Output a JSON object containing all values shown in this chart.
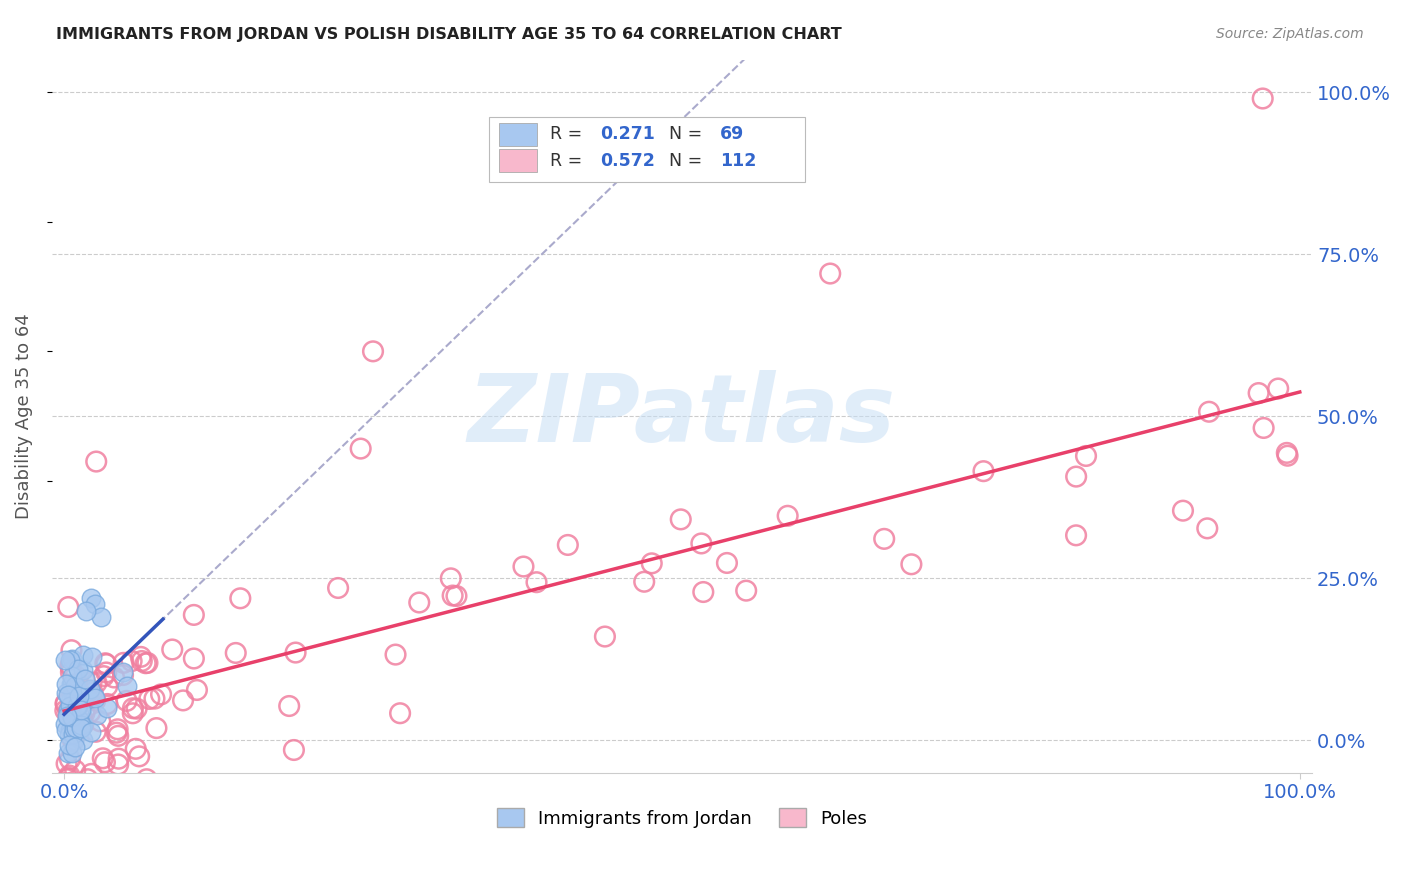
{
  "title": "IMMIGRANTS FROM JORDAN VS POLISH DISABILITY AGE 35 TO 64 CORRELATION CHART",
  "source": "Source: ZipAtlas.com",
  "ylabel": "Disability Age 35 to 64",
  "watermark_text": "ZIPatlas",
  "jordan_color": "#a8c8f0",
  "jordan_edge_color": "#7aaade",
  "jordan_line_color": "#3355bb",
  "poles_color_face": "none",
  "poles_edge_color": "#f080a0",
  "poles_line_color": "#e8406a",
  "dashed_line_color": "#aaaacc",
  "legend_r_eq_color": "#333333",
  "legend_value_color": "#3366cc",
  "legend_n_eq_color": "#333333",
  "axis_label_color": "#3366cc",
  "title_color": "#222222",
  "source_color": "#888888",
  "grid_color": "#cccccc",
  "ylim": [
    -0.05,
    1.05
  ],
  "xlim": [
    -0.01,
    1.01
  ],
  "y_ticks": [
    0.0,
    0.25,
    0.5,
    0.75,
    1.0
  ],
  "y_tick_labels": [
    "0.0%",
    "25.0%",
    "50.0%",
    "75.0%",
    "100.0%"
  ],
  "x_tick_labels": [
    "0.0%",
    "100.0%"
  ],
  "x_ticks": [
    0.0,
    1.0
  ],
  "legend_r1": "0.271",
  "legend_n1": "69",
  "legend_r2": "0.572",
  "legend_n2": "112",
  "bottom_legend_label1": "Immigrants from Jordan",
  "bottom_legend_label2": "Poles"
}
